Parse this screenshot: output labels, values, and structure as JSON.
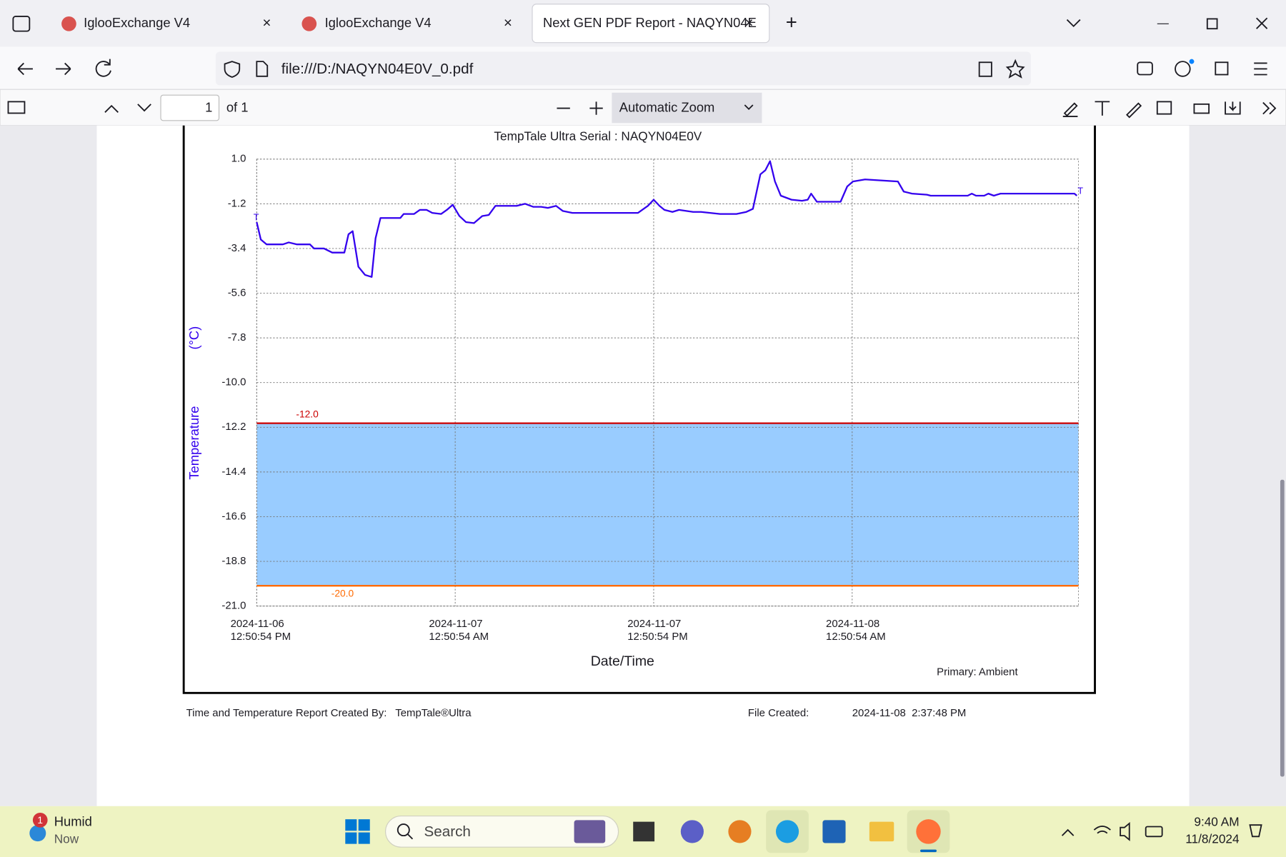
{
  "browser": {
    "tabs": [
      "IglooExchange V4",
      "IglooExchange V4",
      "Next GEN PDF Report - NAQYN04E"
    ],
    "url": "file:///D:/NAQYN04E0V_0.pdf"
  },
  "pdf_toolbar": {
    "page": "1",
    "page_count": "of 1",
    "zoom": "Automatic Zoom"
  },
  "chart_data": {
    "type": "line",
    "title": "TempTale Ultra  Serial : NAQYN04E0V",
    "ylabel": "Temperature",
    "yunit": "(°C)",
    "xlabel": "Date/Time",
    "note": "Primary: Ambient",
    "markers": [
      "T",
      "T"
    ],
    "xlim": [
      "2024-11-06T12:50:54",
      "2024-11-08T14:31:54"
    ],
    "xticks": [
      {
        "value": "2024-11-06T12:50:54",
        "label": [
          "2024-11-06",
          "12:50:54 PM"
        ]
      },
      {
        "value": "2024-11-07T00:50:54",
        "label": [
          "2024-11-07",
          "12:50:54 AM"
        ]
      },
      {
        "value": "2024-11-07T12:50:54",
        "label": [
          "2024-11-07",
          "12:50:54 PM"
        ]
      },
      {
        "value": "2024-11-08T00:50:54",
        "label": [
          "2024-11-08",
          "12:50:54 AM"
        ]
      }
    ],
    "ylim": [
      -21,
      1
    ],
    "yticks": [
      {
        "value": 1,
        "label": "1.0"
      },
      -1.2,
      -3.4,
      -5.6,
      -7.8,
      {
        "value": -10,
        "label": "-10.0"
      },
      -12.2,
      -14.4,
      -16.6,
      -18.8,
      {
        "value": -21,
        "label": "-21.0"
      }
    ],
    "grid": true,
    "thresholds": [
      {
        "value": -12,
        "label": "-12.0",
        "color": "#cc0000"
      },
      {
        "value": -20,
        "label": "-20.0",
        "color": "#ff6a00"
      }
    ],
    "band_color": "#99ccff",
    "x": [
      "2024-11-06T12:50:54",
      "2024-11-06T13:05:54",
      "2024-11-06T13:26:54",
      "2024-11-06T14:25:54",
      "2024-11-06T14:46:54",
      "2024-11-06T15:16:54",
      "2024-11-06T16:03:54",
      "2024-11-06T16:18:54",
      "2024-11-06T16:54:54",
      "2024-11-06T17:24:54",
      "2024-11-06T18:08:54",
      "2024-11-06T18:23:54",
      "2024-11-06T18:38:54",
      "2024-11-06T18:59:54",
      "2024-11-06T19:23:54",
      "2024-11-06T19:47:54",
      "2024-11-06T20:01:54",
      "2024-11-06T20:19:54",
      "2024-11-06T21:31:54",
      "2024-11-06T21:43:54",
      "2024-11-06T22:21:54",
      "2024-11-06T22:42:54",
      "2024-11-06T23:06:54",
      "2024-11-06T23:27:54",
      "2024-11-06T23:59:54",
      "2024-11-07T00:20:54",
      "2024-11-07T00:41:54",
      "2024-11-07T01:05:54",
      "2024-11-07T01:29:54",
      "2024-11-07T01:58:54",
      "2024-11-07T02:28:54",
      "2024-11-07T02:52:54",
      "2024-11-07T03:16:54",
      "2024-11-07T04:33:54",
      "2024-11-07T05:03:54",
      "2024-11-07T05:33:54",
      "2024-11-07T06:02:54",
      "2024-11-07T06:26:54",
      "2024-11-07T06:56:54",
      "2024-11-07T07:20:54",
      "2024-11-07T07:55:54",
      "2024-11-07T11:53:54",
      "2024-11-07T12:29:54",
      "2024-11-07T12:50:54",
      "2024-11-07T13:11:54",
      "2024-11-07T13:29:54",
      "2024-11-07T13:58:54",
      "2024-11-07T14:22:54",
      "2024-11-07T15:13:54",
      "2024-11-07T15:42:54",
      "2024-11-07T16:51:54",
      "2024-11-07T17:50:54",
      "2024-11-07T18:26:54",
      "2024-11-07T18:50:54",
      "2024-11-07T19:17:54",
      "2024-11-07T19:35:54",
      "2024-11-07T19:52:54",
      "2024-11-07T20:10:54",
      "2024-11-07T20:31:54",
      "2024-11-07T21:10:54",
      "2024-11-07T21:48:54",
      "2024-11-07T22:09:54",
      "2024-11-07T22:21:54",
      "2024-11-07T22:42:54",
      "2024-11-08T00:08:54",
      "2024-11-08T00:32:54",
      "2024-11-08T00:53:54",
      "2024-11-08T01:37:54",
      "2024-11-08T03:36:54",
      "2024-11-08T03:57:54",
      "2024-11-08T04:27:54",
      "2024-11-08T05:21:54",
      "2024-11-08T05:35:54",
      "2024-11-08T07:49:54",
      "2024-11-08T08:04:54",
      "2024-11-08T08:19:54",
      "2024-11-08T08:49:54",
      "2024-11-08T09:04:54",
      "2024-11-08T09:24:54",
      "2024-11-08T09:48:54",
      "2024-11-08T14:16:54",
      "2024-11-08T14:25:54"
    ],
    "series": [
      {
        "name": "Ambient",
        "color": "#3300ee",
        "values": [
          -2.1,
          -2.96,
          -3.2,
          -3.2,
          -3.1,
          -3.2,
          -3.2,
          -3.4,
          -3.4,
          -3.6,
          -3.6,
          -2.7,
          -2.55,
          -4.3,
          -4.7,
          -4.8,
          -2.9,
          -1.9,
          -1.9,
          -1.7,
          -1.7,
          -1.5,
          -1.5,
          -1.65,
          -1.7,
          -1.5,
          -1.25,
          -1.8,
          -2.1,
          -2.15,
          -1.8,
          -1.75,
          -1.3,
          -1.3,
          -1.2,
          -1.35,
          -1.35,
          -1.4,
          -1.3,
          -1.55,
          -1.65,
          -1.65,
          -1.3,
          -1.0,
          -1.3,
          -1.5,
          -1.6,
          -1.5,
          -1.6,
          -1.6,
          -1.7,
          -1.7,
          -1.6,
          -1.45,
          0.25,
          0.45,
          0.9,
          -0.1,
          -0.8,
          -1.0,
          -1.05,
          -1.0,
          -0.7,
          -1.1,
          -1.1,
          -0.35,
          -0.1,
          0.0,
          -0.1,
          -0.6,
          -0.7,
          -0.75,
          -0.8,
          -0.8,
          -0.7,
          -0.8,
          -0.8,
          -0.7,
          -0.8,
          -0.7,
          -0.7,
          -0.8
        ]
      }
    ]
  },
  "report_footer": {
    "created_by_label": "Time and Temperature Report Created By:",
    "created_by_value": "TempTale®Ultra",
    "file_created_label": "File Created:",
    "file_created_value": "2024-11-08  2:37:48 PM"
  },
  "taskbar": {
    "badge": "1",
    "weather_title": "Humid",
    "weather_sub": "Now",
    "search": "Search",
    "time": "9:40 AM",
    "date": "11/8/2024"
  }
}
